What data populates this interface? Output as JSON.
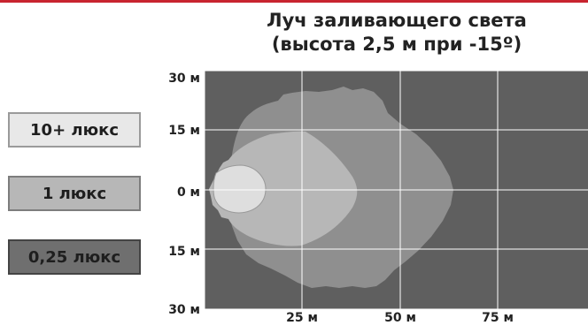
{
  "title": {
    "line1": "Луч заливающего света",
    "line2": "(высота 2,5 м при -15º)"
  },
  "legend": [
    {
      "label": "10+ люкс",
      "color": "#e8e8e8"
    },
    {
      "label": "1 люкс",
      "color": "#b7b7b7"
    },
    {
      "label": "0,25 люкс",
      "color": "#6f6f6f"
    }
  ],
  "axes": {
    "y_ticks": [
      "30 м",
      "15 м",
      "0 м",
      "15 м",
      "30 м"
    ],
    "x_ticks": [
      "25 м",
      "50 м",
      "75 м"
    ]
  },
  "colors": {
    "accent_rule": "#c8242f",
    "background_zone": "#5f5f5f",
    "zone_025_lux": "#8f8f8f",
    "zone_1_lux": "#b7b7b7",
    "zone_10_lux": "#dedede",
    "grid": "#ffffff"
  }
}
